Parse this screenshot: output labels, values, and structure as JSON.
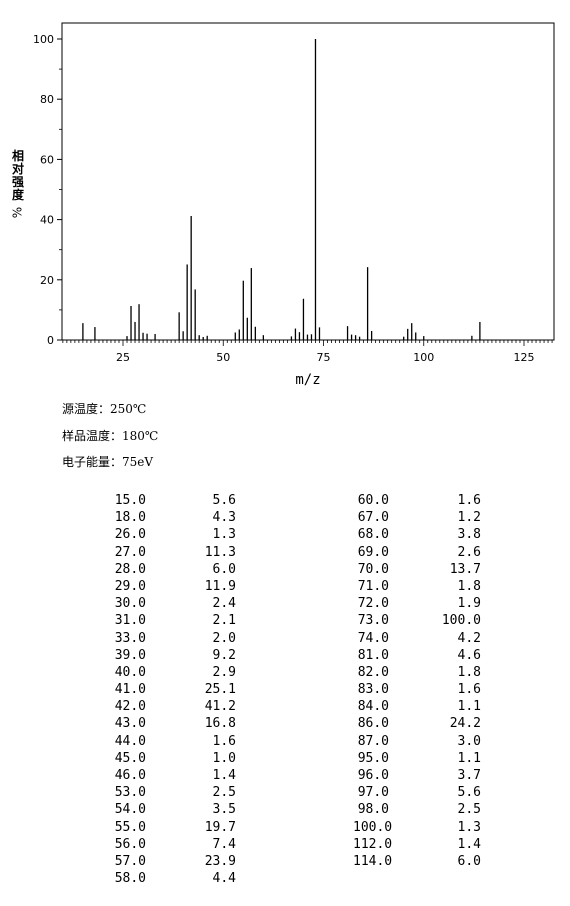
{
  "chart_data": {
    "type": "bar",
    "xlabel": "m/z",
    "ylabel": "相对强度",
    "ylabel_unit": "%",
    "xlim": [
      10,
      132
    ],
    "ylim": [
      0,
      100
    ],
    "xticks": [
      25,
      50,
      75,
      100,
      125
    ],
    "yticks": [
      0,
      20,
      40,
      60,
      80,
      100
    ],
    "grid": false,
    "peaks": [
      {
        "mz": 15.0,
        "intensity": 5.6
      },
      {
        "mz": 18.0,
        "intensity": 4.3
      },
      {
        "mz": 26.0,
        "intensity": 1.3
      },
      {
        "mz": 27.0,
        "intensity": 11.3
      },
      {
        "mz": 28.0,
        "intensity": 6.0
      },
      {
        "mz": 29.0,
        "intensity": 11.9
      },
      {
        "mz": 30.0,
        "intensity": 2.4
      },
      {
        "mz": 31.0,
        "intensity": 2.1
      },
      {
        "mz": 33.0,
        "intensity": 2.0
      },
      {
        "mz": 39.0,
        "intensity": 9.2
      },
      {
        "mz": 40.0,
        "intensity": 2.9
      },
      {
        "mz": 41.0,
        "intensity": 25.1
      },
      {
        "mz": 42.0,
        "intensity": 41.2
      },
      {
        "mz": 43.0,
        "intensity": 16.8
      },
      {
        "mz": 44.0,
        "intensity": 1.6
      },
      {
        "mz": 45.0,
        "intensity": 1.0
      },
      {
        "mz": 46.0,
        "intensity": 1.4
      },
      {
        "mz": 53.0,
        "intensity": 2.5
      },
      {
        "mz": 54.0,
        "intensity": 3.5
      },
      {
        "mz": 55.0,
        "intensity": 19.7
      },
      {
        "mz": 56.0,
        "intensity": 7.4
      },
      {
        "mz": 57.0,
        "intensity": 23.9
      },
      {
        "mz": 58.0,
        "intensity": 4.4
      },
      {
        "mz": 60.0,
        "intensity": 1.6
      },
      {
        "mz": 67.0,
        "intensity": 1.2
      },
      {
        "mz": 68.0,
        "intensity": 3.8
      },
      {
        "mz": 69.0,
        "intensity": 2.6
      },
      {
        "mz": 70.0,
        "intensity": 13.7
      },
      {
        "mz": 71.0,
        "intensity": 1.8
      },
      {
        "mz": 72.0,
        "intensity": 1.9
      },
      {
        "mz": 73.0,
        "intensity": 100.0
      },
      {
        "mz": 74.0,
        "intensity": 4.2
      },
      {
        "mz": 81.0,
        "intensity": 4.6
      },
      {
        "mz": 82.0,
        "intensity": 1.8
      },
      {
        "mz": 83.0,
        "intensity": 1.6
      },
      {
        "mz": 84.0,
        "intensity": 1.1
      },
      {
        "mz": 86.0,
        "intensity": 24.2
      },
      {
        "mz": 87.0,
        "intensity": 3.0
      },
      {
        "mz": 95.0,
        "intensity": 1.1
      },
      {
        "mz": 96.0,
        "intensity": 3.7
      },
      {
        "mz": 97.0,
        "intensity": 5.6
      },
      {
        "mz": 98.0,
        "intensity": 2.5
      },
      {
        "mz": 100.0,
        "intensity": 1.3
      },
      {
        "mz": 112.0,
        "intensity": 1.4
      },
      {
        "mz": 114.0,
        "intensity": 6.0
      }
    ]
  },
  "conditions": {
    "source_temp": "源温度：250℃",
    "sample_temp": "样品温度：180℃",
    "electron_energy": "电子能量：75eV"
  },
  "peak_table": {
    "left": [
      [
        "15.0",
        "5.6"
      ],
      [
        "18.0",
        "4.3"
      ],
      [
        "26.0",
        "1.3"
      ],
      [
        "27.0",
        "11.3"
      ],
      [
        "28.0",
        "6.0"
      ],
      [
        "29.0",
        "11.9"
      ],
      [
        "30.0",
        "2.4"
      ],
      [
        "31.0",
        "2.1"
      ],
      [
        "33.0",
        "2.0"
      ],
      [
        "39.0",
        "9.2"
      ],
      [
        "40.0",
        "2.9"
      ],
      [
        "41.0",
        "25.1"
      ],
      [
        "42.0",
        "41.2"
      ],
      [
        "43.0",
        "16.8"
      ],
      [
        "44.0",
        "1.6"
      ],
      [
        "45.0",
        "1.0"
      ],
      [
        "46.0",
        "1.4"
      ],
      [
        "53.0",
        "2.5"
      ],
      [
        "54.0",
        "3.5"
      ],
      [
        "55.0",
        "19.7"
      ],
      [
        "56.0",
        "7.4"
      ],
      [
        "57.0",
        "23.9"
      ],
      [
        "58.0",
        "4.4"
      ]
    ],
    "right": [
      [
        "60.0",
        "1.6"
      ],
      [
        "67.0",
        "1.2"
      ],
      [
        "68.0",
        "3.8"
      ],
      [
        "69.0",
        "2.6"
      ],
      [
        "70.0",
        "13.7"
      ],
      [
        "71.0",
        "1.8"
      ],
      [
        "72.0",
        "1.9"
      ],
      [
        "73.0",
        "100.0"
      ],
      [
        "74.0",
        "4.2"
      ],
      [
        "81.0",
        "4.6"
      ],
      [
        "82.0",
        "1.8"
      ],
      [
        "83.0",
        "1.6"
      ],
      [
        "84.0",
        "1.1"
      ],
      [
        "86.0",
        "24.2"
      ],
      [
        "87.0",
        "3.0"
      ],
      [
        "95.0",
        "1.1"
      ],
      [
        "96.0",
        "3.7"
      ],
      [
        "97.0",
        "5.6"
      ],
      [
        "98.0",
        "2.5"
      ],
      [
        "100.0",
        "1.3"
      ],
      [
        "112.0",
        "1.4"
      ],
      [
        "114.0",
        "6.0"
      ]
    ]
  }
}
